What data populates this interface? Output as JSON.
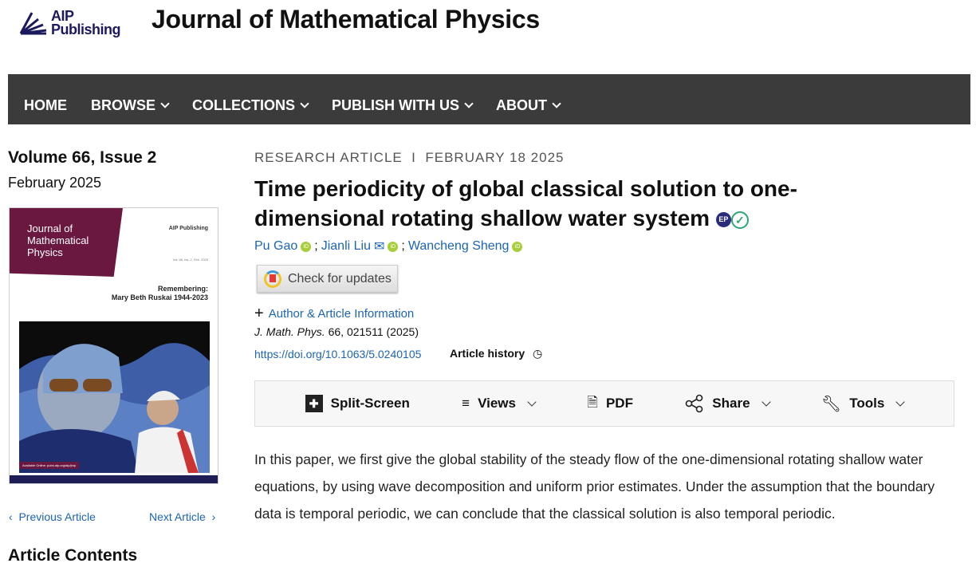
{
  "header": {
    "logo_line1": "AIP",
    "logo_line2": "Publishing",
    "journal_title": "Journal of Mathematical Physics"
  },
  "nav": [
    {
      "label": "HOME",
      "dropdown": false
    },
    {
      "label": "BROWSE",
      "dropdown": true
    },
    {
      "label": "COLLECTIONS",
      "dropdown": true
    },
    {
      "label": "PUBLISH WITH US",
      "dropdown": true
    },
    {
      "label": "ABOUT",
      "dropdown": true
    }
  ],
  "sidebar": {
    "volume": "Volume 66, Issue 2",
    "date": "February 2025",
    "cover": {
      "title": "Journal of Mathematical Physics",
      "logo": "AIP Publishing",
      "vol": "Vol. 66, Iss. 2, Feb. 2025",
      "remember_line1": "Remembering:",
      "remember_line2": "Mary Beth Ruskai 1944-2023",
      "available": "Available Online: pubs.aip.org/aip/jmp"
    },
    "prev": "Previous Article",
    "next": "Next Article",
    "contents": "Article Contents"
  },
  "article": {
    "type": "RESEARCH ARTICLE",
    "date": "FEBRUARY 18 2025",
    "title": "Time periodicity of global classical solution to one-dimensional rotating shallow water system",
    "authors": [
      "Pu Gao",
      "Jianli Liu",
      "Wancheng Sheng"
    ],
    "check_updates": "Check for updates",
    "author_info": "Author & Article Information",
    "citation_journal": "J. Math. Phys.",
    "citation_rest": " 66, 021511 (2025)",
    "doi": "https://doi.org/10.1063/5.0240105",
    "history": "Article history",
    "abstract": "In this paper, we first give the global stability of the steady flow of the one-dimensional rotating shallow water equations, by using wave decomposition and uniform prior estimates. Under the assumption that the boundary data is temporal periodic, we can conclude that the classical solution is also temporal periodic."
  },
  "toolbar": {
    "split": "Split-Screen",
    "views": "Views",
    "pdf": "PDF",
    "share": "Share",
    "tools": "Tools"
  },
  "colors": {
    "nav_bg": "#3b3b3b",
    "link": "#1d64b4",
    "cover_band": "#6b1840",
    "orcid": "#a6ce39"
  }
}
